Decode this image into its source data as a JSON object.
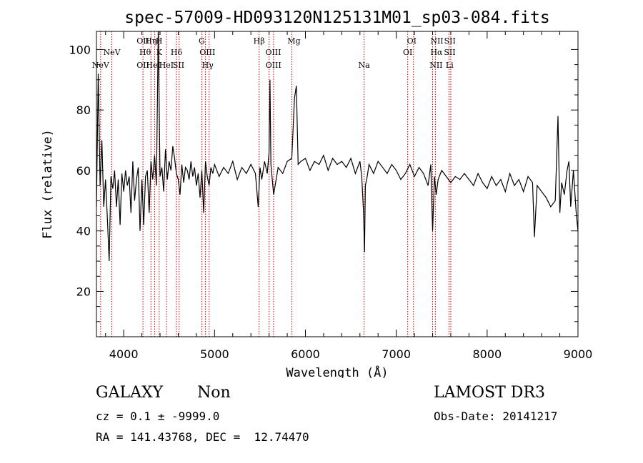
{
  "chart_data": {
    "type": "line",
    "title": "spec-57009-HD093120N125131M01_sp03-084.fits",
    "xlabel": "Wavelength (Å)",
    "ylabel": "Flux (relative)",
    "xlim": [
      3700,
      9000
    ],
    "ylim": [
      5,
      106
    ],
    "xticks": [
      4000,
      5000,
      6000,
      7000,
      8000,
      9000
    ],
    "yticks": [
      20,
      40,
      60,
      80,
      100
    ],
    "line_color": "#000000",
    "marker_color": "#cc0000",
    "series": [
      {
        "x": [
          3700,
          3720,
          3740,
          3760,
          3780,
          3800,
          3820,
          3840,
          3860,
          3880,
          3900,
          3920,
          3940,
          3960,
          3980,
          4000,
          4020,
          4040,
          4060,
          4080,
          4100,
          4120,
          4140,
          4160,
          4180,
          4200,
          4220,
          4240,
          4260,
          4280,
          4300,
          4320,
          4340,
          4360,
          4380,
          4400,
          4420,
          4440,
          4460,
          4480,
          4500,
          4520,
          4540,
          4560,
          4580,
          4600,
          4620,
          4640,
          4660,
          4680,
          4700,
          4720,
          4740,
          4760,
          4780,
          4800,
          4820,
          4840,
          4860,
          4880,
          4900,
          4920,
          4940,
          4960,
          4980,
          5000,
          5050,
          5100,
          5150,
          5200,
          5250,
          5300,
          5350,
          5400,
          5450,
          5480,
          5500,
          5520,
          5550,
          5580,
          5600,
          5610,
          5620,
          5650,
          5700,
          5750,
          5800,
          5850,
          5880,
          5900,
          5920,
          5950,
          6000,
          6050,
          6100,
          6150,
          6200,
          6250,
          6300,
          6350,
          6400,
          6450,
          6500,
          6550,
          6600,
          6620,
          6640,
          6650,
          6660,
          6680,
          6700,
          6750,
          6800,
          6850,
          6900,
          6950,
          7000,
          7050,
          7100,
          7150,
          7200,
          7250,
          7300,
          7350,
          7380,
          7400,
          7420,
          7440,
          7460,
          7500,
          7550,
          7600,
          7650,
          7700,
          7750,
          7800,
          7850,
          7900,
          7950,
          8000,
          8050,
          8100,
          8150,
          8200,
          8250,
          8300,
          8350,
          8400,
          8450,
          8500,
          8520,
          8550,
          8600,
          8650,
          8700,
          8750,
          8780,
          8800,
          8820,
          8850,
          8880,
          8900,
          8920,
          8950,
          8980,
          9000
        ],
        "values": [
          48,
          92,
          55,
          70,
          48,
          57,
          44,
          30,
          58,
          54,
          60,
          48,
          57,
          42,
          59,
          53,
          60,
          55,
          58,
          46,
          63,
          50,
          57,
          61,
          40,
          57,
          42,
          58,
          60,
          46,
          63,
          57,
          65,
          55,
          107,
          58,
          61,
          53,
          67,
          57,
          63,
          60,
          68,
          64,
          59,
          57,
          52,
          62,
          56,
          61,
          60,
          57,
          63,
          58,
          61,
          55,
          59,
          51,
          60,
          46,
          63,
          58,
          55,
          61,
          59,
          62,
          58,
          61,
          59,
          63,
          57,
          61,
          59,
          62,
          59,
          48,
          61,
          57,
          63,
          59,
          66,
          90,
          62,
          52,
          61,
          59,
          63,
          64,
          84,
          88,
          62,
          63,
          64,
          60,
          63,
          62,
          65,
          60,
          64,
          62,
          63,
          61,
          64,
          59,
          63,
          58,
          46,
          33,
          55,
          58,
          62,
          59,
          63,
          61,
          59,
          62,
          60,
          57,
          59,
          62,
          58,
          61,
          59,
          55,
          62,
          40,
          58,
          52,
          57,
          60,
          58,
          56,
          58,
          57,
          59,
          57,
          55,
          59,
          56,
          54,
          58,
          55,
          57,
          53,
          59,
          55,
          57,
          53,
          58,
          56,
          38,
          55,
          53,
          51,
          48,
          50,
          78,
          46,
          56,
          52,
          60,
          63,
          48,
          60,
          46,
          40
        ]
      }
    ],
    "line_markers": [
      {
        "x": 3746,
        "label": "NeV",
        "row": 3
      },
      {
        "x": 3869,
        "label": "NeV",
        "row": 2
      },
      {
        "x": 4212,
        "label": "OII",
        "row": 1
      },
      {
        "x": 4212,
        "label": "OII",
        "row": 3
      },
      {
        "x": 4236,
        "label": "Hθ",
        "row": 2
      },
      {
        "x": 4300,
        "label": "Hη",
        "row": 1
      },
      {
        "x": 4326,
        "label": "HeI",
        "row": 3
      },
      {
        "x": 4388,
        "label": "H",
        "row": 1
      },
      {
        "x": 4390,
        "label": "K",
        "row": 2
      },
      {
        "x": 4470,
        "label": "HeI",
        "row": 3
      },
      {
        "x": 4581,
        "label": "Hδ",
        "row": 2
      },
      {
        "x": 4604,
        "label": "SII",
        "row": 3
      },
      {
        "x": 4859,
        "label": "G",
        "row": 1
      },
      {
        "x": 4921,
        "label": "OIII",
        "row": 2
      },
      {
        "x": 4924,
        "label": "Hγ",
        "row": 3
      },
      {
        "x": 5490,
        "label": "Hβ",
        "row": 1
      },
      {
        "x": 5646,
        "label": "OIII",
        "row": 2
      },
      {
        "x": 5648,
        "label": "OIII",
        "row": 3
      },
      {
        "x": 5874,
        "label": "Mg",
        "row": 1
      },
      {
        "x": 6646,
        "label": "Na",
        "row": 3
      },
      {
        "x": 7170,
        "label": "OI",
        "row": 1
      },
      {
        "x": 7126,
        "label": "OI",
        "row": 2
      },
      {
        "x": 7447,
        "label": "NII",
        "row": 1
      },
      {
        "x": 7443,
        "label": "Hα",
        "row": 2
      },
      {
        "x": 7438,
        "label": "NII",
        "row": 3
      },
      {
        "x": 7590,
        "label": "SII",
        "row": 1
      },
      {
        "x": 7588,
        "label": "SII",
        "row": 2
      },
      {
        "x": 7587,
        "label": "Li",
        "row": 3
      }
    ],
    "marker_lines_x": [
      3746,
      3869,
      4212,
      4300,
      4340,
      4390,
      4470,
      4580,
      4610,
      4861,
      4900,
      4940,
      5490,
      5600,
      5650,
      5850,
      6646,
      7126,
      7190,
      7400,
      7430,
      7580,
      7600
    ]
  },
  "footer": {
    "object_class": "GALAXY",
    "subclass": "Non",
    "survey": "LAMOST DR3",
    "cz_line": "cz = 0.1 ± -9999.0",
    "obs_date": "Obs-Date: 20141217",
    "radec": "RA = 141.43768, DEC =  12.74470"
  }
}
